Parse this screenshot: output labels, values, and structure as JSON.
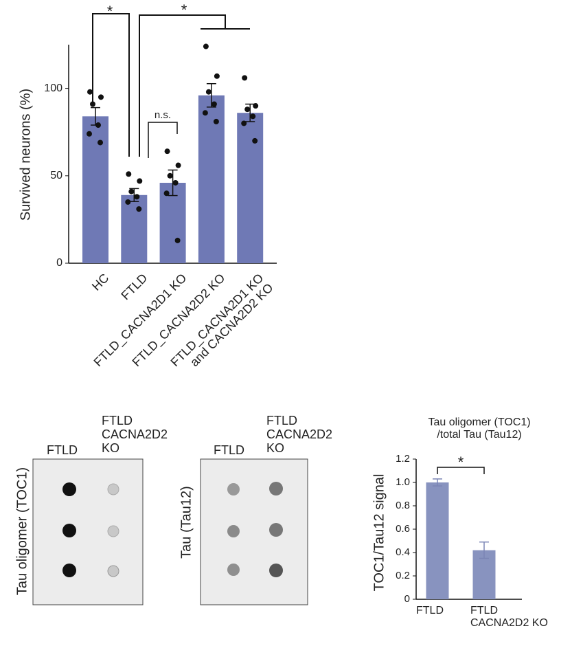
{
  "chart_data": [
    {
      "type": "bar",
      "ylabel": "Survived neurons (%)",
      "categories": [
        "HC",
        "FTLD",
        "FTLD_CACNA2D1 KO",
        "FTLD_CACNA2D2 KO",
        "FTLD_CACNA2D1 KO\nand CACNA2D2 KO"
      ],
      "values": [
        84,
        39,
        46,
        96,
        86
      ],
      "errors": [
        5,
        3.7,
        7.3,
        6.7,
        5
      ],
      "points": [
        [
          98,
          95,
          91,
          79,
          74,
          69
        ],
        [
          51,
          47,
          41,
          38,
          35,
          31
        ],
        [
          64,
          56,
          50,
          46,
          40,
          13
        ],
        [
          124,
          107,
          98,
          91,
          86,
          81
        ],
        [
          106,
          90,
          88,
          84,
          80,
          70
        ]
      ],
      "color": "#6f79b5",
      "ylim": [
        0,
        125
      ],
      "yticks": [
        0,
        50,
        100
      ],
      "grid": false,
      "annotations": [
        "*",
        "*",
        "n.s."
      ]
    },
    {
      "type": "bar",
      "title": "Tau oligomer (TOC1)\n/total Tau (Tau12)",
      "ylabel": "TOC1/Tau12 signal",
      "categories": [
        "FTLD",
        "FTLD\nCACNA2D2 KO"
      ],
      "values": [
        1.0,
        0.42
      ],
      "errors": [
        0.03,
        0.07
      ],
      "color": "#8893bf",
      "ylim": [
        0,
        1.2
      ],
      "yticks": [
        0,
        0.2,
        0.4,
        0.6,
        0.8,
        {
          "value": 1,
          "label": "1.0"
        },
        1.2
      ],
      "grid": false,
      "annotations": [
        "*"
      ]
    }
  ],
  "blots": [
    {
      "ylabel": "Tau oligomer (TOC1)",
      "columns": [
        "FTLD",
        "FTLD\nCACNA2D2\nKO"
      ]
    },
    {
      "ylabel": "Tau (Tau12)",
      "columns": [
        "FTLD",
        "FTLD\nCACNA2D2\nKO"
      ]
    }
  ]
}
